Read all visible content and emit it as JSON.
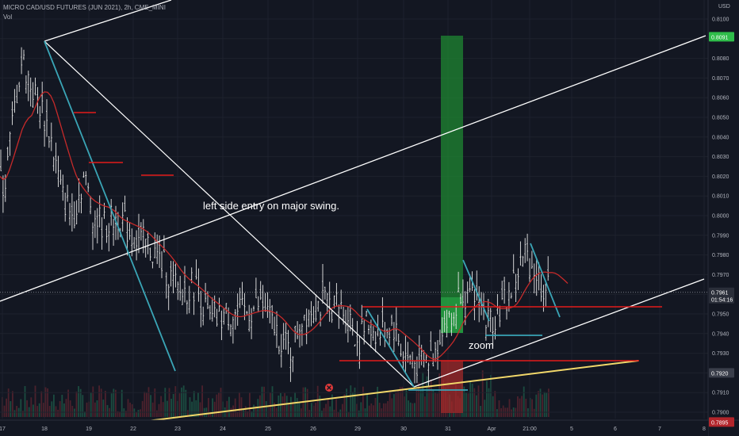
{
  "header": {
    "title": "MICRO CAD/USD FUTURES (JUN 2021), 2h, CME_MINI",
    "volume_label": "Vol",
    "currency": "USD"
  },
  "chart_data": {
    "type": "candlestick",
    "ylim": [
      0.7888,
      0.8122
    ],
    "price_ticks": [
      "0.8100",
      "0.8090",
      "0.8080",
      "0.8070",
      "0.8060",
      "0.8050",
      "0.8040",
      "0.8030",
      "0.8020",
      "0.8010",
      "0.8000",
      "0.7990",
      "0.7980",
      "0.7970",
      "0.7960",
      "0.7950",
      "0.7940",
      "0.7930",
      "0.7920",
      "0.7910",
      "0.7900"
    ],
    "time_ticks": [
      "17",
      "18",
      "19",
      "22",
      "23",
      "24",
      "25",
      "26",
      "29",
      "30",
      "31",
      "Apr",
      "21:00",
      "5",
      "6",
      "7",
      "8"
    ],
    "price_badges": [
      {
        "value": "0.8091",
        "color": "#2fbd4a"
      },
      {
        "value": "0.7961",
        "sub": "01:54:16",
        "color": "#2a2e39"
      },
      {
        "value": "0.7920",
        "color": "#3a3e4a"
      },
      {
        "value": "0.7895",
        "color": "#b2252b"
      }
    ],
    "current_price": 0.7961,
    "annotations": [
      {
        "text": "left side entry on major swing."
      },
      {
        "text": "zoom"
      }
    ],
    "colors": {
      "background": "#131722",
      "candle": "#e7e7e7",
      "moving_average": "#c62a2a",
      "trendline": "#ffffff",
      "teal_lines": "#3aa5b6",
      "levels": "#e31b1b",
      "support": "#f2d86a",
      "profit_zone": "#1f8a32",
      "loss_zone": "#a82a2a"
    }
  }
}
